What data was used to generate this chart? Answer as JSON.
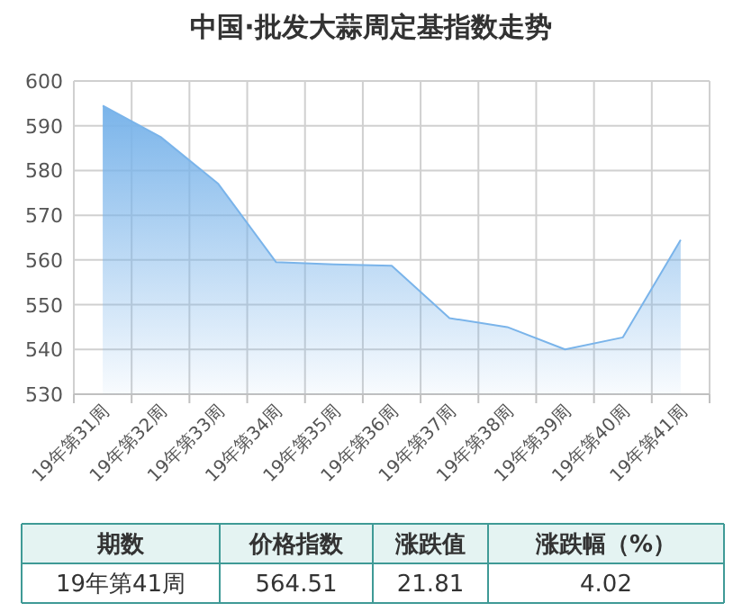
{
  "chart_data": {
    "type": "area",
    "title": "中国·批发大蒜周定基指数走势",
    "categories": [
      "19年第31周",
      "19年第32周",
      "19年第33周",
      "19年第34周",
      "19年第35周",
      "19年第36周",
      "19年第37周",
      "19年第38周",
      "19年第39周",
      "19年第40周",
      "19年第41周"
    ],
    "values": [
      594.5,
      587.5,
      577,
      559.5,
      559,
      558.7,
      547,
      545,
      540,
      542.7,
      564.51
    ],
    "color": "#7ab4ea",
    "ylim": [
      530,
      600
    ],
    "yticks": [
      530,
      540,
      550,
      560,
      570,
      580,
      590,
      600
    ],
    "grid": true,
    "annotations": [
      "期数",
      "价格指数",
      "涨跌值",
      "涨跌幅（%）",
      "19年第41周",
      "564.51",
      "21.81",
      "4.02"
    ]
  }
}
